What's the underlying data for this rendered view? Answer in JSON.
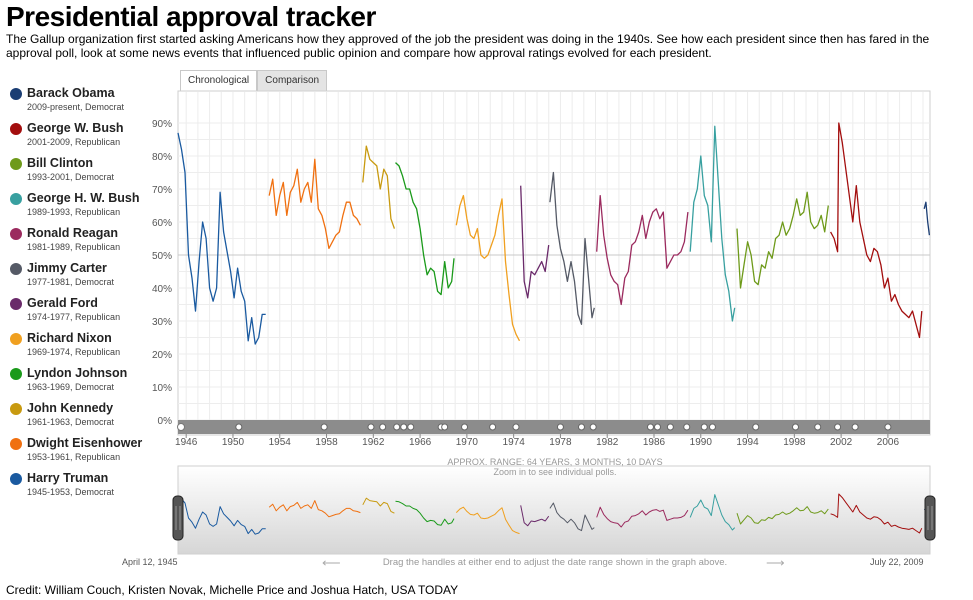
{
  "header": {
    "title": "Presidential approval tracker",
    "intro": "The Gallup organization first started asking Americans how they approved of the job the president was doing in the 1940s. See how each president since then has fared in the approval poll, look at some news events that influenced public opinion and compare how approval ratings evolved for each president."
  },
  "tabs": [
    {
      "label": "Chronological",
      "active": true
    },
    {
      "label": "Comparison",
      "active": false
    }
  ],
  "legend": [
    {
      "name": "Barack Obama",
      "sub": "2009-present, Democrat",
      "color": "#1a3d73"
    },
    {
      "name": "George W. Bush",
      "sub": "2001-2009, Republican",
      "color": "#a30e0e"
    },
    {
      "name": "Bill Clinton",
      "sub": "1993-2001, Democrat",
      "color": "#6e9a1a"
    },
    {
      "name": "George H. W. Bush",
      "sub": "1989-1993, Republican",
      "color": "#38a0a0"
    },
    {
      "name": "Ronald Reagan",
      "sub": "1981-1989, Republican",
      "color": "#9b2a5e"
    },
    {
      "name": "Jimmy Carter",
      "sub": "1977-1981, Democrat",
      "color": "#555a66"
    },
    {
      "name": "Gerald Ford",
      "sub": "1974-1977, Republican",
      "color": "#6a2a6a"
    },
    {
      "name": "Richard Nixon",
      "sub": "1969-1974, Republican",
      "color": "#f0a020"
    },
    {
      "name": "Lyndon Johnson",
      "sub": "1963-1969, Democrat",
      "color": "#1a9a1a"
    },
    {
      "name": "John Kennedy",
      "sub": "1961-1963, Democrat",
      "color": "#c89a10"
    },
    {
      "name": "Dwight Eisenhower",
      "sub": "1953-1961, Republican",
      "color": "#f07010"
    },
    {
      "name": "Harry Truman",
      "sub": "1945-1953, Democrat",
      "color": "#1a5aa0"
    }
  ],
  "chart_data": {
    "type": "line",
    "title": "",
    "xlabel": "",
    "ylabel": "",
    "xlim": [
      1945.3,
      2009.6
    ],
    "ylim": [
      0,
      100
    ],
    "y_ticks": [
      0,
      10,
      20,
      30,
      40,
      50,
      60,
      70,
      80,
      90
    ],
    "y_tick_labels": [
      "0%",
      "10%",
      "20%",
      "30%",
      "40%",
      "50%",
      "60%",
      "70%",
      "80%",
      "90%"
    ],
    "x_ticks": [
      1946,
      1950,
      1954,
      1958,
      1962,
      1966,
      1970,
      1974,
      1978,
      1982,
      1986,
      1990,
      1994,
      1998,
      2002,
      2006
    ],
    "x_tick_labels": [
      "1946",
      "1950",
      "1954",
      "1958",
      "1962",
      "1966",
      "1970",
      "1974",
      "1978",
      "1982",
      "1986",
      "1990",
      "1994",
      "1998",
      "2002",
      "2006"
    ],
    "grid": true,
    "event_markers": [
      1950.5,
      1957.8,
      1961.8,
      1962.8,
      1964.0,
      1964.6,
      1965.2,
      1967.8,
      1968.1,
      1969.8,
      1972.2,
      1974.2,
      1978.0,
      1979.8,
      1980.8,
      1985.7,
      1986.3,
      1987.4,
      1988.8,
      1990.3,
      1991.0,
      1994.7,
      1998.1,
      2000.0,
      2001.7,
      2003.2,
      2006.0
    ],
    "series": [
      {
        "name": "Harry Truman",
        "color": "#1a5aa0",
        "x": [
          1945.3,
          1945.6,
          1945.9,
          1946.2,
          1946.5,
          1946.8,
          1947.1,
          1947.4,
          1947.7,
          1948.0,
          1948.3,
          1948.6,
          1948.9,
          1949.2,
          1949.5,
          1949.8,
          1950.1,
          1950.4,
          1950.7,
          1951.0,
          1951.3,
          1951.6,
          1951.9,
          1952.2,
          1952.5,
          1952.8
        ],
        "y": [
          87,
          82,
          75,
          50,
          43,
          33,
          48,
          60,
          55,
          40,
          36,
          40,
          69,
          57,
          51,
          45,
          37,
          46,
          39,
          36,
          24,
          31,
          23,
          25,
          32,
          32
        ]
      },
      {
        "name": "Dwight Eisenhower",
        "color": "#f07010",
        "x": [
          1953.1,
          1953.4,
          1953.7,
          1954.0,
          1954.3,
          1954.6,
          1954.9,
          1955.2,
          1955.5,
          1955.8,
          1956.1,
          1956.4,
          1956.7,
          1957.0,
          1957.3,
          1957.6,
          1957.9,
          1958.2,
          1958.5,
          1958.8,
          1959.1,
          1959.4,
          1959.7,
          1960.0,
          1960.3,
          1960.6,
          1960.9
        ],
        "y": [
          68,
          73,
          62,
          68,
          72,
          62,
          69,
          71,
          76,
          66,
          70,
          72,
          66,
          79,
          64,
          62,
          58,
          52,
          54,
          56,
          57,
          62,
          66,
          66,
          62,
          61,
          59
        ]
      },
      {
        "name": "John Kennedy",
        "color": "#c89a10",
        "x": [
          1961.1,
          1961.4,
          1961.7,
          1962.0,
          1962.3,
          1962.6,
          1962.9,
          1963.2,
          1963.5,
          1963.8
        ],
        "y": [
          72,
          83,
          79,
          78,
          77,
          70,
          76,
          74,
          61,
          58
        ]
      },
      {
        "name": "Lyndon Johnson",
        "color": "#1a9a1a",
        "x": [
          1963.9,
          1964.2,
          1964.5,
          1964.8,
          1965.1,
          1965.4,
          1965.7,
          1966.0,
          1966.3,
          1966.6,
          1966.9,
          1967.2,
          1967.5,
          1967.8,
          1968.1,
          1968.4,
          1968.7,
          1968.9
        ],
        "y": [
          78,
          77,
          74,
          70,
          70,
          66,
          64,
          58,
          50,
          44,
          46,
          45,
          39,
          38,
          48,
          40,
          42,
          49
        ]
      },
      {
        "name": "Richard Nixon",
        "color": "#f0a020",
        "x": [
          1969.1,
          1969.4,
          1969.7,
          1970.0,
          1970.3,
          1970.6,
          1970.9,
          1971.2,
          1971.5,
          1971.8,
          1972.1,
          1972.4,
          1972.7,
          1973.0,
          1973.3,
          1973.6,
          1973.9,
          1974.2,
          1974.5
        ],
        "y": [
          59,
          65,
          68,
          61,
          56,
          55,
          58,
          50,
          49,
          50,
          53,
          56,
          62,
          67,
          48,
          38,
          29,
          26,
          24
        ]
      },
      {
        "name": "Gerald Ford",
        "color": "#6a2a6a",
        "x": [
          1974.6,
          1974.9,
          1975.2,
          1975.5,
          1975.8,
          1976.1,
          1976.4,
          1976.7,
          1977.0
        ],
        "y": [
          71,
          42,
          37,
          45,
          44,
          46,
          48,
          45,
          53
        ]
      },
      {
        "name": "Jimmy Carter",
        "color": "#555a66",
        "x": [
          1977.1,
          1977.4,
          1977.7,
          1978.0,
          1978.3,
          1978.6,
          1978.9,
          1979.2,
          1979.5,
          1979.8,
          1980.1,
          1980.4,
          1980.7,
          1980.9
        ],
        "y": [
          66,
          75,
          59,
          52,
          48,
          42,
          48,
          42,
          32,
          29,
          55,
          43,
          31,
          34
        ]
      },
      {
        "name": "Ronald Reagan",
        "color": "#9b2a5e",
        "x": [
          1981.1,
          1981.4,
          1981.7,
          1982.0,
          1982.3,
          1982.6,
          1982.9,
          1983.2,
          1983.5,
          1983.8,
          1984.1,
          1984.4,
          1984.7,
          1985.0,
          1985.3,
          1985.6,
          1985.9,
          1986.2,
          1986.5,
          1986.8,
          1987.1,
          1987.4,
          1987.7,
          1988.0,
          1988.3,
          1988.6,
          1988.9
        ],
        "y": [
          51,
          68,
          56,
          49,
          44,
          42,
          41,
          35,
          43,
          45,
          53,
          54,
          57,
          62,
          55,
          60,
          63,
          64,
          61,
          63,
          46,
          48,
          50,
          50,
          51,
          54,
          63
        ]
      },
      {
        "name": "George H. W. Bush",
        "color": "#38a0a0",
        "x": [
          1989.1,
          1989.4,
          1989.7,
          1990.0,
          1990.3,
          1990.6,
          1990.9,
          1991.2,
          1991.5,
          1991.8,
          1992.1,
          1992.4,
          1992.7,
          1992.9
        ],
        "y": [
          51,
          66,
          70,
          80,
          68,
          65,
          54,
          89,
          72,
          55,
          44,
          39,
          30,
          34
        ]
      },
      {
        "name": "Bill Clinton",
        "color": "#6e9a1a",
        "x": [
          1993.1,
          1993.4,
          1993.7,
          1994.0,
          1994.3,
          1994.6,
          1994.9,
          1995.2,
          1995.5,
          1995.8,
          1996.1,
          1996.4,
          1996.7,
          1997.0,
          1997.3,
          1997.6,
          1997.9,
          1998.2,
          1998.5,
          1998.8,
          1999.1,
          1999.4,
          1999.7,
          2000.0,
          2000.3,
          2000.6,
          2000.9
        ],
        "y": [
          58,
          40,
          47,
          54,
          50,
          42,
          41,
          47,
          46,
          51,
          49,
          55,
          56,
          60,
          56,
          58,
          62,
          67,
          62,
          63,
          69,
          60,
          58,
          59,
          62,
          57,
          65
        ]
      },
      {
        "name": "George W. Bush",
        "color": "#a30e0e",
        "x": [
          2001.1,
          2001.4,
          2001.7,
          2001.8,
          2002.1,
          2002.4,
          2002.7,
          2003.0,
          2003.3,
          2003.6,
          2003.9,
          2004.2,
          2004.5,
          2004.8,
          2005.1,
          2005.4,
          2005.7,
          2006.0,
          2006.3,
          2006.6,
          2006.9,
          2007.2,
          2007.5,
          2007.8,
          2008.1,
          2008.4,
          2008.7,
          2008.9
        ],
        "y": [
          57,
          55,
          51,
          90,
          84,
          76,
          68,
          60,
          71,
          60,
          55,
          50,
          48,
          52,
          51,
          47,
          40,
          43,
          36,
          38,
          35,
          33,
          32,
          31,
          33,
          29,
          25,
          33
        ]
      },
      {
        "name": "Barack Obama",
        "color": "#1a3d73",
        "x": [
          2009.1,
          2009.25,
          2009.4,
          2009.55
        ],
        "y": [
          64,
          66,
          60,
          56
        ]
      }
    ]
  },
  "overview": {
    "approx_label": "APPROX. RANGE: 64 YEARS, 3 MONTHS, 10 DAYS",
    "zoom_hint": "Zoom in to see individual polls.",
    "drag_hint": "Drag the handles at either end to adjust the date range shown in the graph above.",
    "arrow_left": "⟵",
    "arrow_right": "⟶",
    "start_date": "April 12, 1945",
    "end_date": "July 22, 2009"
  },
  "credit": "Credit: William Couch, Kristen Novak, Michelle Price and Joshua Hatch, USA TODAY"
}
